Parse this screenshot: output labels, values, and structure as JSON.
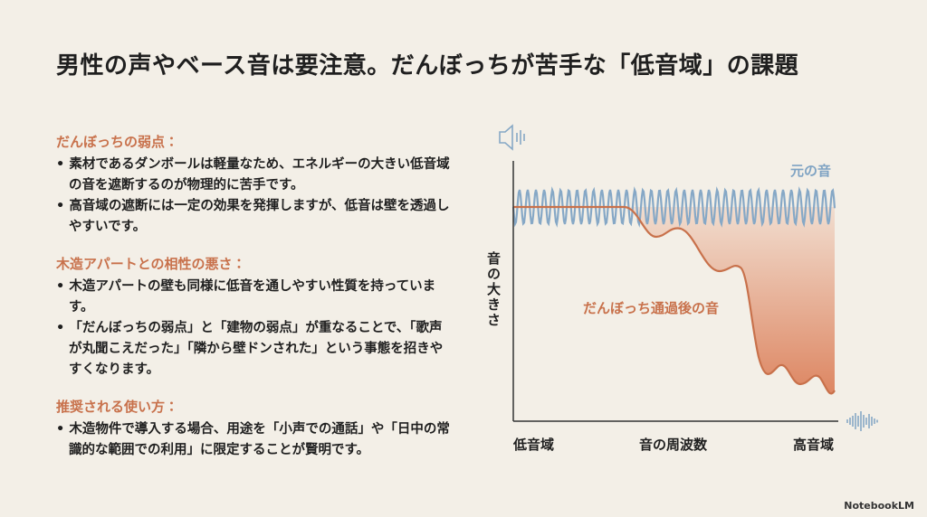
{
  "header": {
    "title": "男性の声やベース音は要注意。だんぼっちが苦手な「低音域」の課題"
  },
  "sections": [
    {
      "heading": "だんぼっちの弱点：",
      "bullets": [
        "素材であるダンボールは軽量なため、エネルギーの大きい低音域の音を遮断するのが物理的に苦手です。",
        "高音域の遮断には一定の効果を発揮しますが、低音は壁を透過しやすいです。"
      ]
    },
    {
      "heading": "木造アパートとの相性の悪さ：",
      "bullets": [
        "木造アパートの壁も同様に低音を通しやすい性質を持っています。",
        "「だんぼっちの弱点」と「建物の弱点」が重なることで、「歌声が丸聞こえだった」「隣から壁ドンされた」という事態を招きやすくなります。"
      ]
    },
    {
      "heading": "推奨される使い方：",
      "bullets": [
        "木造物件で導入する場合、用途を「小声での通話」や「日中の常識的な範囲での利用」に限定することが賢明です。"
      ]
    }
  ],
  "diagram": {
    "y_label": "音の大きさ",
    "x_labels": [
      "低音域",
      "音の周波数",
      "高音域"
    ],
    "original_label": "元の音",
    "filtered_label": "だんぼっち通過後の音"
  },
  "footer": {
    "brand": "NotebookLM"
  }
}
